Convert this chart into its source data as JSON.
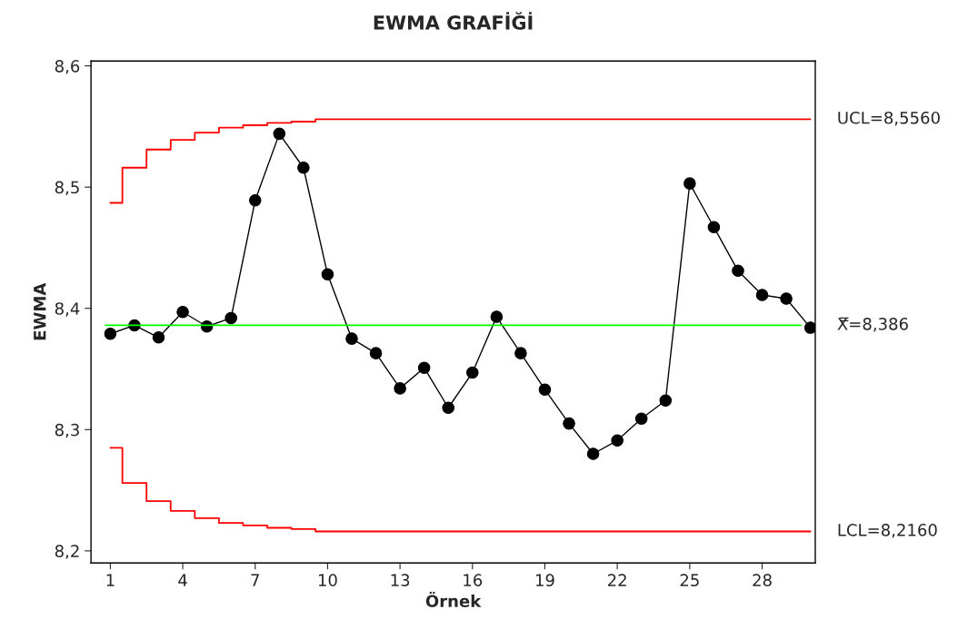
{
  "chart_data": {
    "type": "line",
    "title": "EWMA GRAFİĞİ",
    "xlabel": "Örnek",
    "ylabel": "EWMA",
    "x": [
      1,
      2,
      3,
      4,
      5,
      6,
      7,
      8,
      9,
      10,
      11,
      12,
      13,
      14,
      15,
      16,
      17,
      18,
      19,
      20,
      21,
      22,
      23,
      24,
      25,
      26,
      27,
      28,
      29,
      30
    ],
    "series": [
      {
        "color": "#000000",
        "marker": "circle",
        "values": [
          8.379,
          8.386,
          8.376,
          8.397,
          8.385,
          8.392,
          8.489,
          8.544,
          8.516,
          8.428,
          8.375,
          8.363,
          8.334,
          8.351,
          8.318,
          8.347,
          8.393,
          8.363,
          8.333,
          8.305,
          8.28,
          8.291,
          8.309,
          8.324,
          8.503,
          8.467,
          8.431,
          8.411,
          8.408,
          8.384
        ]
      },
      {
        "type": "step",
        "name": "UCL=8,5560",
        "color": "#ff0000",
        "marker": "none",
        "values": [
          8.487,
          8.516,
          8.531,
          8.539,
          8.545,
          8.549,
          8.551,
          8.553,
          8.554,
          8.556,
          8.556,
          8.556,
          8.556,
          8.556,
          8.556,
          8.556,
          8.556,
          8.556,
          8.556,
          8.556,
          8.556,
          8.556,
          8.556,
          8.556,
          8.556,
          8.556,
          8.556,
          8.556,
          8.556,
          8.556
        ]
      },
      {
        "type": "step",
        "name": "LCL=8,2160",
        "color": "#ff0000",
        "marker": "none",
        "values": [
          8.285,
          8.256,
          8.241,
          8.233,
          8.227,
          8.223,
          8.221,
          8.219,
          8.218,
          8.216,
          8.216,
          8.216,
          8.216,
          8.216,
          8.216,
          8.216,
          8.216,
          8.216,
          8.216,
          8.216,
          8.216,
          8.216,
          8.216,
          8.216,
          8.216,
          8.216,
          8.216,
          8.216,
          8.216,
          8.216
        ]
      }
    ],
    "ref_lines": [
      {
        "axis": "y",
        "value": 8.386,
        "label": "X̿=8,386",
        "color": "#00ff00"
      }
    ],
    "xlim": [
      0.2,
      30.2
    ],
    "xticks": [
      1,
      4,
      7,
      10,
      13,
      16,
      19,
      22,
      25,
      28
    ],
    "ylim": [
      8.19,
      8.604
    ],
    "yticks": [
      {
        "value": 8.2,
        "label": "8,2"
      },
      {
        "value": 8.3,
        "label": "8,3"
      },
      {
        "value": 8.4,
        "label": "8,4"
      },
      {
        "value": 8.5,
        "label": "8,5"
      },
      {
        "value": 8.6,
        "label": "8,6"
      }
    ],
    "grid": false,
    "legend": false
  }
}
